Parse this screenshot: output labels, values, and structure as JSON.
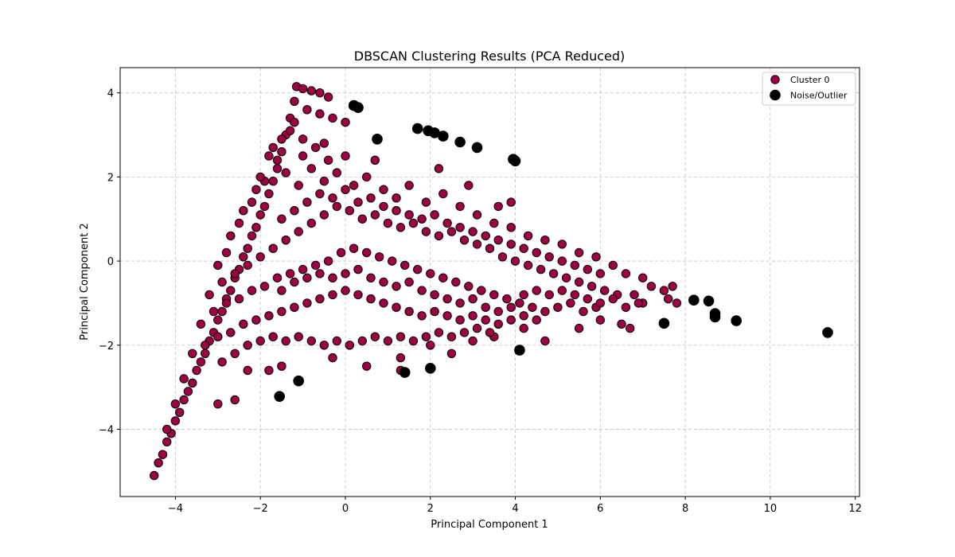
{
  "chart_data": {
    "type": "scatter",
    "title": "DBSCAN Clustering Results (PCA Reduced)",
    "xlabel": "Principal Component 1",
    "ylabel": "Principal Component 2",
    "xlim": [
      -5.3,
      12.1
    ],
    "ylim": [
      -5.6,
      4.6
    ],
    "xticks": [
      -4,
      -2,
      0,
      2,
      4,
      6,
      8,
      10,
      12
    ],
    "yticks": [
      -4,
      -2,
      0,
      2,
      4
    ],
    "grid": true,
    "legend_position": "top-right",
    "series": [
      {
        "name": "Cluster 0",
        "color": "#9e0142",
        "edge_color": "#000000",
        "points": [
          [
            -4.5,
            -5.1
          ],
          [
            -4.4,
            -4.8
          ],
          [
            -4.3,
            -4.6
          ],
          [
            -4.2,
            -4.3
          ],
          [
            -4.1,
            -4.1
          ],
          [
            -4.0,
            -3.8
          ],
          [
            -3.9,
            -3.6
          ],
          [
            -3.8,
            -3.3
          ],
          [
            -3.7,
            -3.1
          ],
          [
            -3.6,
            -2.9
          ],
          [
            -3.5,
            -2.6
          ],
          [
            -3.4,
            -2.4
          ],
          [
            -3.3,
            -2.2
          ],
          [
            -3.2,
            -1.9
          ],
          [
            -3.1,
            -1.7
          ],
          [
            -3.0,
            -1.4
          ],
          [
            -2.9,
            -1.2
          ],
          [
            -2.8,
            -0.9
          ],
          [
            -2.7,
            -0.7
          ],
          [
            -2.6,
            -0.4
          ],
          [
            -2.5,
            -0.2
          ],
          [
            -2.4,
            0.1
          ],
          [
            -2.3,
            0.3
          ],
          [
            -2.2,
            0.6
          ],
          [
            -2.1,
            0.8
          ],
          [
            -2.0,
            1.1
          ],
          [
            -1.9,
            1.3
          ],
          [
            -1.8,
            1.6
          ],
          [
            -1.7,
            1.9
          ],
          [
            -1.6,
            2.2
          ],
          [
            -1.5,
            2.6
          ],
          [
            -1.4,
            3.0
          ],
          [
            -1.3,
            3.4
          ],
          [
            -1.2,
            3.8
          ],
          [
            -1.15,
            4.15
          ],
          [
            -1.0,
            4.1
          ],
          [
            -0.8,
            4.05
          ],
          [
            -0.6,
            4.0
          ],
          [
            -0.4,
            3.9
          ],
          [
            -1.2,
            3.3
          ],
          [
            -0.9,
            3.6
          ],
          [
            -0.6,
            3.5
          ],
          [
            -0.3,
            3.4
          ],
          [
            0.0,
            3.3
          ],
          [
            -0.5,
            2.8
          ],
          [
            -1.0,
            2.9
          ],
          [
            0.0,
            2.5
          ],
          [
            0.7,
            2.4
          ],
          [
            2.2,
            2.2
          ],
          [
            2.9,
            1.8
          ],
          [
            3.9,
            1.4
          ],
          [
            3.6,
            1.3
          ],
          [
            -3.0,
            -3.4
          ],
          [
            -2.6,
            -3.3
          ],
          [
            -2.3,
            -2.6
          ],
          [
            -1.8,
            -2.6
          ],
          [
            -1.5,
            -2.5
          ],
          [
            -0.3,
            -2.3
          ],
          [
            0.5,
            -2.5
          ],
          [
            1.3,
            -2.3
          ],
          [
            1.3,
            -2.6
          ],
          [
            2.0,
            -2.0
          ],
          [
            2.5,
            -2.2
          ],
          [
            3.0,
            -1.9
          ],
          [
            3.5,
            -1.8
          ],
          [
            4.2,
            -1.6
          ],
          [
            4.7,
            -1.9
          ],
          [
            5.5,
            -1.6
          ],
          [
            6.0,
            -1.4
          ],
          [
            6.5,
            -1.5
          ],
          [
            6.7,
            -1.6
          ],
          [
            7.0,
            -0.4
          ],
          [
            7.2,
            -0.6
          ],
          [
            7.5,
            -0.7
          ],
          [
            7.7,
            -0.6
          ],
          [
            7.8,
            -1.0
          ],
          [
            7.6,
            -0.9
          ],
          [
            7.0,
            -1.0
          ],
          [
            6.8,
            -0.8
          ],
          [
            -2.8,
            0.2
          ],
          [
            -2.5,
            0.9
          ],
          [
            -2.2,
            1.4
          ],
          [
            -1.9,
            1.9
          ],
          [
            -1.6,
            2.4
          ],
          [
            -1.4,
            2.1
          ],
          [
            -1.1,
            1.8
          ],
          [
            -0.8,
            2.2
          ],
          [
            -0.5,
            1.9
          ],
          [
            -0.2,
            2.1
          ],
          [
            0.2,
            1.8
          ],
          [
            0.5,
            2.0
          ],
          [
            0.9,
            1.7
          ],
          [
            1.2,
            1.5
          ],
          [
            1.5,
            1.8
          ],
          [
            1.9,
            1.4
          ],
          [
            2.3,
            1.6
          ],
          [
            2.7,
            1.3
          ],
          [
            3.1,
            1.1
          ],
          [
            3.5,
            0.9
          ],
          [
            3.9,
            0.8
          ],
          [
            4.3,
            0.6
          ],
          [
            4.7,
            0.5
          ],
          [
            5.1,
            0.4
          ],
          [
            5.5,
            0.2
          ],
          [
            5.9,
            0.1
          ],
          [
            6.3,
            -0.1
          ],
          [
            6.6,
            -0.3
          ],
          [
            -2.9,
            -0.5
          ],
          [
            -2.6,
            -0.3
          ],
          [
            -2.3,
            -0.1
          ],
          [
            -2.0,
            0.1
          ],
          [
            -1.7,
            0.3
          ],
          [
            -1.4,
            0.5
          ],
          [
            -1.1,
            0.7
          ],
          [
            -0.8,
            0.9
          ],
          [
            -0.5,
            1.1
          ],
          [
            -0.2,
            1.3
          ],
          [
            0.1,
            1.2
          ],
          [
            0.4,
            1.0
          ],
          [
            0.7,
            1.1
          ],
          [
            1.0,
            0.9
          ],
          [
            1.3,
            0.8
          ],
          [
            1.6,
            0.9
          ],
          [
            1.9,
            0.7
          ],
          [
            2.2,
            0.6
          ],
          [
            2.5,
            0.7
          ],
          [
            2.8,
            0.5
          ],
          [
            3.1,
            0.4
          ],
          [
            3.4,
            0.3
          ],
          [
            3.7,
            0.1
          ],
          [
            4.0,
            0.0
          ],
          [
            4.3,
            -0.1
          ],
          [
            4.6,
            -0.2
          ],
          [
            4.9,
            -0.3
          ],
          [
            5.2,
            -0.4
          ],
          [
            5.5,
            -0.5
          ],
          [
            5.8,
            -0.6
          ],
          [
            6.1,
            -0.7
          ],
          [
            6.4,
            -0.8
          ],
          [
            -3.1,
            -1.2
          ],
          [
            -2.8,
            -1.0
          ],
          [
            -2.5,
            -0.9
          ],
          [
            -2.2,
            -0.7
          ],
          [
            -1.9,
            -0.6
          ],
          [
            -1.6,
            -0.4
          ],
          [
            -1.3,
            -0.3
          ],
          [
            -1.0,
            -0.2
          ],
          [
            -0.7,
            -0.1
          ],
          [
            -0.4,
            0.0
          ],
          [
            -0.1,
            0.2
          ],
          [
            0.2,
            0.3
          ],
          [
            0.5,
            0.2
          ],
          [
            0.8,
            0.1
          ],
          [
            1.1,
            0.0
          ],
          [
            1.4,
            -0.1
          ],
          [
            1.7,
            -0.2
          ],
          [
            2.0,
            -0.3
          ],
          [
            2.3,
            -0.4
          ],
          [
            2.6,
            -0.5
          ],
          [
            2.9,
            -0.6
          ],
          [
            3.2,
            -0.7
          ],
          [
            3.5,
            -0.8
          ],
          [
            3.8,
            -0.9
          ],
          [
            4.1,
            -1.0
          ],
          [
            4.4,
            -1.1
          ],
          [
            4.7,
            -1.2
          ],
          [
            5.0,
            -1.1
          ],
          [
            5.3,
            -1.0
          ],
          [
            5.6,
            -1.2
          ],
          [
            5.9,
            -1.1
          ],
          [
            -3.3,
            -2.0
          ],
          [
            -3.0,
            -1.8
          ],
          [
            -2.7,
            -1.7
          ],
          [
            -2.4,
            -1.5
          ],
          [
            -2.1,
            -1.4
          ],
          [
            -1.8,
            -1.3
          ],
          [
            -1.5,
            -1.2
          ],
          [
            -1.2,
            -1.1
          ],
          [
            -0.9,
            -1.0
          ],
          [
            -0.6,
            -0.9
          ],
          [
            -0.3,
            -0.8
          ],
          [
            0.0,
            -0.7
          ],
          [
            0.3,
            -0.8
          ],
          [
            0.6,
            -0.9
          ],
          [
            0.9,
            -1.0
          ],
          [
            1.2,
            -1.1
          ],
          [
            1.5,
            -1.2
          ],
          [
            1.8,
            -1.3
          ],
          [
            2.1,
            -1.2
          ],
          [
            2.4,
            -1.3
          ],
          [
            2.7,
            -1.4
          ],
          [
            3.0,
            -1.3
          ],
          [
            3.3,
            -1.4
          ],
          [
            3.6,
            -1.5
          ],
          [
            3.9,
            -1.4
          ],
          [
            4.2,
            -1.3
          ],
          [
            4.5,
            -1.4
          ],
          [
            -2.9,
            -2.4
          ],
          [
            -2.6,
            -2.2
          ],
          [
            -2.3,
            -2.0
          ],
          [
            -2.0,
            -1.9
          ],
          [
            -1.7,
            -1.8
          ],
          [
            -1.4,
            -1.9
          ],
          [
            -1.1,
            -1.8
          ],
          [
            -0.8,
            -1.9
          ],
          [
            -0.5,
            -2.0
          ],
          [
            -0.2,
            -1.9
          ],
          [
            0.1,
            -2.0
          ],
          [
            0.4,
            -1.9
          ],
          [
            0.7,
            -1.8
          ],
          [
            1.0,
            -1.9
          ],
          [
            1.3,
            -1.8
          ],
          [
            1.6,
            -1.9
          ],
          [
            1.9,
            -1.8
          ],
          [
            2.2,
            -1.7
          ],
          [
            2.5,
            -1.8
          ],
          [
            2.8,
            -1.7
          ],
          [
            3.1,
            -1.6
          ],
          [
            3.4,
            -1.7
          ],
          [
            -1.5,
            1.0
          ],
          [
            -1.2,
            1.2
          ],
          [
            -0.9,
            1.4
          ],
          [
            -0.6,
            1.6
          ],
          [
            -0.3,
            1.5
          ],
          [
            0.0,
            1.7
          ],
          [
            0.3,
            1.4
          ],
          [
            0.6,
            1.5
          ],
          [
            0.9,
            1.3
          ],
          [
            1.2,
            1.2
          ],
          [
            1.5,
            1.1
          ],
          [
            1.8,
            1.0
          ],
          [
            2.1,
            1.1
          ],
          [
            2.4,
            0.9
          ],
          [
            2.7,
            0.8
          ],
          [
            3.0,
            0.7
          ],
          [
            3.3,
            0.6
          ],
          [
            3.6,
            0.5
          ],
          [
            3.9,
            0.4
          ],
          [
            4.2,
            0.3
          ],
          [
            4.5,
            0.2
          ],
          [
            4.8,
            0.1
          ],
          [
            5.1,
            0.0
          ],
          [
            5.4,
            -0.1
          ],
          [
            5.7,
            -0.2
          ],
          [
            6.0,
            -0.3
          ],
          [
            -1.5,
            -0.7
          ],
          [
            -1.2,
            -0.5
          ],
          [
            -0.9,
            -0.4
          ],
          [
            -0.6,
            -0.3
          ],
          [
            -0.3,
            -0.4
          ],
          [
            0.0,
            -0.3
          ],
          [
            0.3,
            -0.2
          ],
          [
            0.6,
            -0.4
          ],
          [
            0.9,
            -0.5
          ],
          [
            1.2,
            -0.6
          ],
          [
            1.5,
            -0.5
          ],
          [
            1.8,
            -0.7
          ],
          [
            2.1,
            -0.8
          ],
          [
            2.4,
            -0.9
          ],
          [
            2.7,
            -1.0
          ],
          [
            3.0,
            -0.9
          ],
          [
            3.3,
            -1.1
          ],
          [
            3.6,
            -1.2
          ],
          [
            3.9,
            -1.1
          ],
          [
            4.2,
            -0.8
          ],
          [
            4.5,
            -0.7
          ],
          [
            4.8,
            -0.8
          ],
          [
            5.1,
            -0.7
          ],
          [
            5.4,
            -0.8
          ],
          [
            5.7,
            -0.9
          ],
          [
            6.0,
            -1.0
          ],
          [
            6.3,
            -0.9
          ],
          [
            6.6,
            -1.1
          ],
          [
            6.9,
            -1.0
          ],
          [
            -2.0,
            2.0
          ],
          [
            -1.8,
            2.5
          ],
          [
            -1.5,
            2.9
          ],
          [
            -1.3,
            3.1
          ],
          [
            -1.0,
            2.5
          ],
          [
            -0.7,
            2.7
          ],
          [
            -0.4,
            2.4
          ],
          [
            -1.7,
            2.7
          ],
          [
            -2.1,
            1.7
          ],
          [
            -2.4,
            1.2
          ],
          [
            -2.7,
            0.6
          ],
          [
            -3.0,
            -0.1
          ],
          [
            -3.2,
            -0.8
          ],
          [
            -3.4,
            -1.5
          ],
          [
            -3.6,
            -2.2
          ],
          [
            -3.8,
            -2.8
          ],
          [
            -4.0,
            -3.4
          ],
          [
            -4.2,
            -4.0
          ]
        ]
      },
      {
        "name": "Noise/Outlier",
        "color": "#000000",
        "edge_color": "#000000",
        "points": [
          [
            0.2,
            3.7
          ],
          [
            0.3,
            3.65
          ],
          [
            0.75,
            2.9
          ],
          [
            1.7,
            3.15
          ],
          [
            1.95,
            3.1
          ],
          [
            2.1,
            3.05
          ],
          [
            2.3,
            2.97
          ],
          [
            2.7,
            2.83
          ],
          [
            3.1,
            2.7
          ],
          [
            3.95,
            2.42
          ],
          [
            4.0,
            2.38
          ],
          [
            8.2,
            -0.93
          ],
          [
            8.55,
            -0.95
          ],
          [
            8.7,
            -1.25
          ],
          [
            8.7,
            -1.33
          ],
          [
            9.2,
            -1.42
          ],
          [
            7.5,
            -1.48
          ],
          [
            11.35,
            -1.7
          ],
          [
            4.1,
            -2.12
          ],
          [
            1.4,
            -2.65
          ],
          [
            2.0,
            -2.55
          ],
          [
            -1.1,
            -2.85
          ],
          [
            -1.55,
            -3.22
          ]
        ]
      }
    ]
  }
}
